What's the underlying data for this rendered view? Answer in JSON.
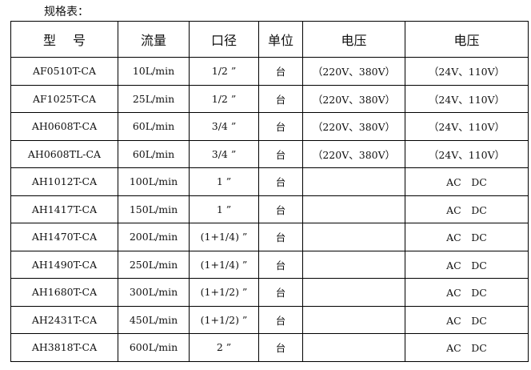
{
  "caption": "规格表：",
  "headers": [
    "型　 号",
    "流量",
    "口径",
    "单位",
    "电压",
    "电压"
  ],
  "rows": [
    [
      "AF0510T-CA",
      "10L/min",
      "1/2 ”",
      "台",
      "（220V、380V）",
      "（24V、110V）"
    ],
    [
      "AF1025T-CA",
      "25L/min",
      "1/2 ”",
      "台",
      "（220V、380V）",
      "（24V、110V）"
    ],
    [
      "AH0608T-CA",
      "60L/min",
      "3/4 ”",
      "台",
      "（220V、380V）",
      "（24V、110V）"
    ],
    [
      "AH0608TL-CA",
      "60L/min",
      "3/4 ”",
      "台",
      "（220V、380V）",
      "（24V、110V）"
    ],
    [
      "AH1012T-CA",
      "100L/min",
      "1 ”",
      "台",
      "",
      "AC　DC"
    ],
    [
      "AH1417T-CA",
      "150L/min",
      "1 ”",
      "台",
      "",
      "AC　DC"
    ],
    [
      "AH1470T-CA",
      "200L/min",
      "(1+1/4) ”",
      "台",
      "",
      "AC　DC"
    ],
    [
      "AH1490T-CA",
      "250L/min",
      "(1+1/4) ”",
      "台",
      "",
      "AC　DC"
    ],
    [
      "AH1680T-CA",
      "300L/min",
      "(1+1/2) ”",
      "台",
      "",
      "AC　DC"
    ],
    [
      "AH2431T-CA",
      "450L/min",
      "(1+1/2) ”",
      "台",
      "",
      "AC　DC"
    ],
    [
      "AH3818T-CA",
      "600L/min",
      "2 ”",
      "台",
      "",
      "AC　DC"
    ]
  ]
}
